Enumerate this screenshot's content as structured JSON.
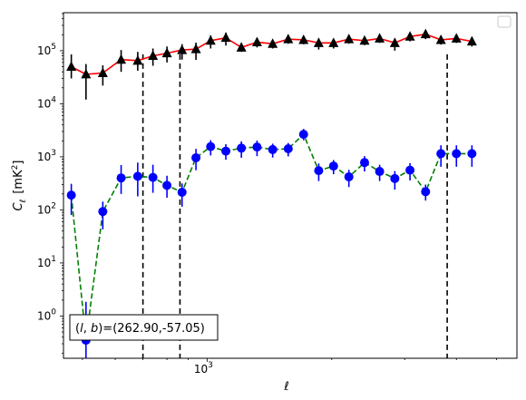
{
  "chart_data": {
    "type": "scatter",
    "xscale": "log",
    "yscale": "log",
    "xlim": [
      450,
      5600
    ],
    "ylim": [
      0.16,
      520000
    ],
    "xlabel": "ℓ",
    "ylabel_main": "C",
    "ylabel_sub": "ℓ",
    "ylabel_unit": "[mK",
    "ylabel_unit_sup": "2",
    "ylabel_unit_close": "]",
    "x_ticks": [
      {
        "value": 1000,
        "base": "10",
        "exp": "3"
      }
    ],
    "y_ticks": [
      {
        "value": 1,
        "base": "10",
        "exp": "0"
      },
      {
        "value": 10,
        "base": "10",
        "exp": "1"
      },
      {
        "value": 100,
        "base": "10",
        "exp": "2"
      },
      {
        "value": 1000,
        "base": "10",
        "exp": "3"
      },
      {
        "value": 10000,
        "base": "10",
        "exp": "4"
      },
      {
        "value": 100000,
        "base": "10",
        "exp": "5"
      }
    ],
    "grid": false,
    "legend": "top-right, empty box",
    "annotation": {
      "text": "(l, b)=(262.90,-57.05)",
      "prefix": "(",
      "l": "l",
      "comma": ", ",
      "b": "b",
      "suffix": ")=(262.90,-57.05)",
      "position": "bottom-left"
    },
    "vlines": [
      700,
      860,
      3800
    ],
    "colors": {
      "series1_line": "#ff0000",
      "series1_marker": "#000000",
      "series2_line": "#008000",
      "series2_marker": "#0000ff",
      "vline": "#000000"
    },
    "series": [
      {
        "marker": "triangle",
        "x": [
          470,
          510,
          560,
          620,
          680,
          740,
          800,
          870,
          940,
          1020,
          1110,
          1210,
          1320,
          1440,
          1570,
          1710,
          1860,
          2020,
          2200,
          2400,
          2610,
          2840,
          3090,
          3370,
          3670,
          4000,
          4360,
          4750,
          5180
        ],
        "y": [
          50000,
          36000,
          38000,
          68000,
          65000,
          80000,
          90000,
          103000,
          107000,
          155000,
          175000,
          115000,
          145000,
          135000,
          165000,
          160000,
          140000,
          140000,
          165000,
          155000,
          170000,
          140000,
          185000,
          205000,
          160000,
          170000,
          150000,
          130000,
          160000
        ],
        "err_lo": [
          20000,
          24000,
          16000,
          28000,
          23000,
          28000,
          30000,
          35000,
          40000,
          45000,
          50000,
          20000,
          30000,
          25000,
          30000,
          28000,
          35000,
          30000,
          30000,
          28000,
          30000,
          40000,
          35000,
          40000,
          30000,
          30000,
          30000,
          30000,
          70000
        ],
        "err_hi": [
          35000,
          20000,
          15000,
          35000,
          30000,
          30000,
          30000,
          30000,
          35000,
          40000,
          45000,
          25000,
          25000,
          25000,
          25000,
          25000,
          30000,
          25000,
          30000,
          25000,
          30000,
          30000,
          30000,
          30000,
          30000,
          30000,
          30000,
          30000,
          70000
        ]
      },
      {
        "marker": "circle",
        "x": [
          470,
          510,
          560,
          620,
          680,
          740,
          800,
          870,
          940,
          1020,
          1110,
          1210,
          1320,
          1440,
          1570,
          1710,
          1860,
          2020,
          2200,
          2400,
          2610,
          2840,
          3090,
          3370,
          3670,
          4000,
          4360,
          4750,
          5180
        ],
        "y": [
          190,
          0.35,
          93,
          400,
          430,
          410,
          290,
          215,
          960,
          1560,
          1280,
          1460,
          1530,
          1370,
          1420,
          2650,
          550,
          670,
          420,
          780,
          530,
          390,
          560,
          220,
          1150,
          1150,
          1150,
          1150,
          1150
        ],
        "err_lo": [
          110,
          0.25,
          50,
          200,
          250,
          200,
          120,
          100,
          400,
          500,
          400,
          500,
          500,
          400,
          400,
          600,
          200,
          200,
          150,
          250,
          180,
          150,
          200,
          70,
          500,
          500,
          500,
          500,
          500
        ],
        "err_hi": [
          120,
          1.5,
          50,
          300,
          350,
          300,
          150,
          100,
          450,
          500,
          450,
          500,
          500,
          400,
          400,
          700,
          200,
          200,
          150,
          250,
          180,
          150,
          200,
          80,
          500,
          500,
          500,
          500,
          500
        ]
      }
    ]
  }
}
